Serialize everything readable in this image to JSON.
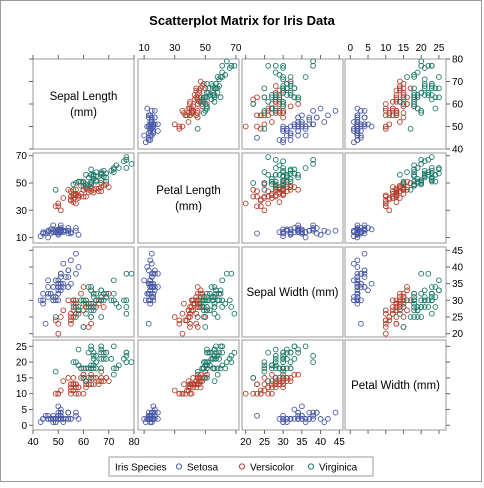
{
  "chart_data": {
    "type": "scatter-matrix",
    "title": "Scatterplot Matrix for Iris Data",
    "variables": [
      {
        "key": "sl",
        "name": "Sepal Length\n(mm)",
        "range": [
          40,
          80
        ],
        "ticks": [
          40,
          50,
          60,
          70,
          80
        ]
      },
      {
        "key": "pl",
        "name": "Petal Length\n(mm)",
        "range": [
          6,
          72
        ],
        "ticks": [
          10,
          30,
          50,
          70
        ]
      },
      {
        "key": "sw",
        "name": "Sepal Width (mm)",
        "range": [
          19,
          46
        ],
        "ticks": [
          20,
          25,
          30,
          35,
          40,
          45
        ]
      },
      {
        "key": "pw",
        "name": "Petal Width (mm)",
        "range": [
          -1.5,
          27
        ],
        "ticks": [
          0,
          5,
          10,
          15,
          20,
          25
        ]
      }
    ],
    "legend": {
      "title": "Iris Species",
      "position": "bottom",
      "entries": [
        "Setosa",
        "Versicolor",
        "Virginica"
      ]
    },
    "series_colors": [
      "#4a5aa8",
      "#b5412f",
      "#1f7a6a"
    ],
    "series": [
      {
        "name": "Setosa",
        "points": [
          [
            51,
            14,
            35,
            2
          ],
          [
            49,
            14,
            30,
            2
          ],
          [
            47,
            13,
            32,
            2
          ],
          [
            46,
            15,
            31,
            2
          ],
          [
            50,
            14,
            36,
            2
          ],
          [
            54,
            17,
            39,
            4
          ],
          [
            46,
            14,
            34,
            3
          ],
          [
            50,
            15,
            34,
            2
          ],
          [
            44,
            14,
            29,
            2
          ],
          [
            49,
            15,
            31,
            1
          ],
          [
            54,
            15,
            37,
            2
          ],
          [
            48,
            16,
            34,
            2
          ],
          [
            48,
            14,
            30,
            1
          ],
          [
            43,
            11,
            30,
            1
          ],
          [
            58,
            12,
            40,
            2
          ],
          [
            57,
            15,
            44,
            4
          ],
          [
            54,
            13,
            39,
            4
          ],
          [
            51,
            14,
            35,
            3
          ],
          [
            57,
            17,
            38,
            3
          ],
          [
            51,
            15,
            38,
            3
          ],
          [
            54,
            17,
            34,
            2
          ],
          [
            51,
            15,
            37,
            4
          ],
          [
            46,
            10,
            36,
            2
          ],
          [
            51,
            17,
            33,
            5
          ],
          [
            48,
            19,
            34,
            2
          ],
          [
            50,
            16,
            30,
            2
          ],
          [
            50,
            16,
            34,
            4
          ],
          [
            52,
            15,
            35,
            2
          ],
          [
            52,
            14,
            34,
            2
          ],
          [
            47,
            16,
            32,
            2
          ],
          [
            48,
            16,
            31,
            2
          ],
          [
            54,
            15,
            34,
            4
          ],
          [
            52,
            15,
            41,
            1
          ],
          [
            55,
            14,
            42,
            2
          ],
          [
            49,
            15,
            31,
            2
          ],
          [
            50,
            12,
            32,
            2
          ],
          [
            55,
            13,
            35,
            2
          ],
          [
            49,
            14,
            36,
            1
          ],
          [
            44,
            13,
            30,
            2
          ],
          [
            51,
            15,
            34,
            2
          ],
          [
            50,
            13,
            35,
            3
          ],
          [
            45,
            13,
            23,
            3
          ],
          [
            44,
            13,
            32,
            2
          ],
          [
            50,
            16,
            35,
            6
          ],
          [
            51,
            19,
            38,
            4
          ],
          [
            48,
            14,
            30,
            3
          ],
          [
            51,
            16,
            38,
            2
          ],
          [
            46,
            14,
            32,
            2
          ],
          [
            53,
            15,
            37,
            2
          ],
          [
            50,
            14,
            33,
            2
          ]
        ]
      },
      {
        "name": "Versicolor",
        "points": [
          [
            70,
            47,
            32,
            14
          ],
          [
            64,
            45,
            32,
            15
          ],
          [
            69,
            49,
            31,
            15
          ],
          [
            55,
            40,
            23,
            13
          ],
          [
            65,
            46,
            28,
            15
          ],
          [
            57,
            45,
            28,
            13
          ],
          [
            63,
            47,
            33,
            16
          ],
          [
            49,
            33,
            24,
            10
          ],
          [
            66,
            46,
            29,
            13
          ],
          [
            52,
            39,
            27,
            14
          ],
          [
            50,
            35,
            20,
            10
          ],
          [
            59,
            42,
            30,
            15
          ],
          [
            60,
            40,
            22,
            10
          ],
          [
            61,
            47,
            29,
            14
          ],
          [
            56,
            36,
            29,
            13
          ],
          [
            67,
            44,
            31,
            14
          ],
          [
            56,
            45,
            30,
            15
          ],
          [
            58,
            41,
            27,
            10
          ],
          [
            62,
            45,
            22,
            15
          ],
          [
            56,
            39,
            25,
            11
          ],
          [
            59,
            48,
            32,
            18
          ],
          [
            61,
            40,
            28,
            13
          ],
          [
            63,
            49,
            25,
            15
          ],
          [
            61,
            47,
            28,
            12
          ],
          [
            64,
            43,
            29,
            13
          ],
          [
            66,
            44,
            30,
            14
          ],
          [
            68,
            48,
            28,
            14
          ],
          [
            67,
            50,
            30,
            17
          ],
          [
            60,
            45,
            29,
            15
          ],
          [
            57,
            35,
            26,
            10
          ],
          [
            55,
            38,
            24,
            11
          ],
          [
            55,
            37,
            24,
            10
          ],
          [
            58,
            39,
            27,
            12
          ],
          [
            60,
            51,
            27,
            16
          ],
          [
            54,
            45,
            30,
            15
          ],
          [
            60,
            45,
            34,
            16
          ],
          [
            67,
            47,
            31,
            15
          ],
          [
            63,
            44,
            23,
            13
          ],
          [
            56,
            41,
            30,
            13
          ],
          [
            55,
            40,
            25,
            13
          ],
          [
            55,
            44,
            26,
            12
          ],
          [
            61,
            46,
            30,
            14
          ],
          [
            58,
            40,
            26,
            12
          ],
          [
            50,
            33,
            23,
            10
          ],
          [
            56,
            42,
            27,
            13
          ],
          [
            57,
            42,
            30,
            12
          ],
          [
            57,
            42,
            29,
            13
          ],
          [
            62,
            43,
            29,
            13
          ],
          [
            51,
            30,
            25,
            11
          ],
          [
            57,
            41,
            28,
            13
          ]
        ]
      },
      {
        "name": "Virginica",
        "points": [
          [
            63,
            60,
            33,
            25
          ],
          [
            58,
            51,
            27,
            19
          ],
          [
            71,
            59,
            30,
            21
          ],
          [
            63,
            56,
            29,
            18
          ],
          [
            65,
            58,
            30,
            22
          ],
          [
            76,
            66,
            30,
            21
          ],
          [
            49,
            45,
            25,
            17
          ],
          [
            73,
            63,
            29,
            18
          ],
          [
            67,
            58,
            25,
            18
          ],
          [
            72,
            61,
            36,
            25
          ],
          [
            65,
            51,
            32,
            20
          ],
          [
            64,
            53,
            27,
            19
          ],
          [
            68,
            55,
            30,
            21
          ],
          [
            57,
            50,
            25,
            20
          ],
          [
            58,
            51,
            28,
            24
          ],
          [
            64,
            53,
            32,
            23
          ],
          [
            65,
            55,
            30,
            18
          ],
          [
            77,
            67,
            38,
            22
          ],
          [
            77,
            69,
            26,
            23
          ],
          [
            60,
            50,
            22,
            15
          ],
          [
            69,
            57,
            32,
            23
          ],
          [
            56,
            49,
            28,
            20
          ],
          [
            77,
            67,
            28,
            20
          ],
          [
            63,
            49,
            27,
            18
          ],
          [
            67,
            57,
            33,
            21
          ],
          [
            72,
            60,
            32,
            18
          ],
          [
            62,
            48,
            28,
            18
          ],
          [
            61,
            49,
            30,
            18
          ],
          [
            64,
            56,
            28,
            21
          ],
          [
            72,
            58,
            30,
            16
          ],
          [
            74,
            61,
            28,
            19
          ],
          [
            79,
            64,
            38,
            20
          ],
          [
            64,
            56,
            28,
            22
          ],
          [
            63,
            51,
            28,
            15
          ],
          [
            61,
            56,
            26,
            14
          ],
          [
            77,
            61,
            30,
            23
          ],
          [
            63,
            56,
            34,
            24
          ],
          [
            64,
            55,
            31,
            18
          ],
          [
            60,
            48,
            30,
            18
          ],
          [
            69,
            54,
            31,
            21
          ],
          [
            67,
            56,
            31,
            24
          ],
          [
            69,
            51,
            31,
            23
          ],
          [
            58,
            51,
            27,
            19
          ],
          [
            68,
            59,
            32,
            23
          ],
          [
            67,
            57,
            33,
            25
          ],
          [
            67,
            52,
            30,
            23
          ],
          [
            63,
            50,
            25,
            19
          ],
          [
            65,
            52,
            30,
            20
          ],
          [
            62,
            54,
            34,
            23
          ],
          [
            59,
            51,
            30,
            18
          ]
        ]
      }
    ]
  }
}
